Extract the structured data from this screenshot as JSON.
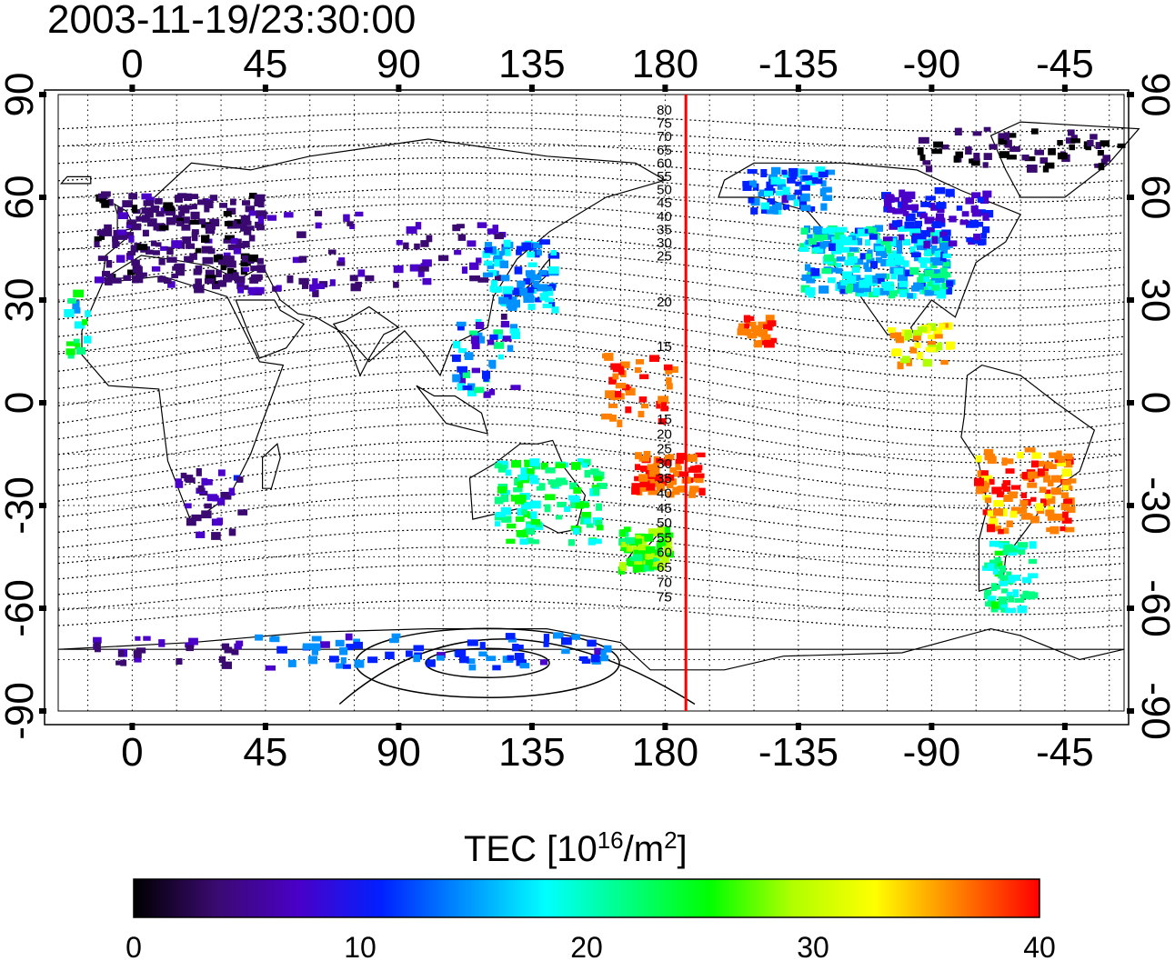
{
  "title": "2003-11-19/23:30:00",
  "map": {
    "lon_range": [
      -25,
      335
    ],
    "lat_range": [
      -90,
      90
    ],
    "top_lon_ticks": [
      "0",
      "45",
      "90",
      "135",
      "180",
      "-135",
      "-90",
      "-45"
    ],
    "bottom_lon_ticks": [
      "0",
      "45",
      "90",
      "135",
      "180",
      "-135",
      "-90",
      "-45"
    ],
    "lon_tick_values": [
      0,
      45,
      90,
      135,
      180,
      225,
      270,
      315
    ],
    "left_lat_ticks": [
      "90",
      "60",
      "30",
      "0",
      "-30",
      "-60",
      "-90"
    ],
    "right_lat_ticks": [
      "90",
      "60",
      "30",
      "0",
      "-30",
      "-60",
      "-90"
    ],
    "lat_tick_values": [
      90,
      60,
      30,
      0,
      -30,
      -60,
      -90
    ],
    "grid": "dotted",
    "meridian_line": {
      "lon": 187,
      "color": "#ff0000"
    },
    "magnetic_lat_labels_north": [
      "80",
      "75",
      "70",
      "65",
      "60",
      "55",
      "50",
      "45",
      "40",
      "35",
      "30",
      "25",
      "20",
      "15"
    ],
    "magnetic_lat_labels_south": [
      "15",
      "20",
      "25",
      "30",
      "35",
      "40",
      "45",
      "50",
      "55",
      "60",
      "65",
      "70",
      "75"
    ]
  },
  "colorbar": {
    "title_main": "TEC  [10",
    "title_sup1": "16",
    "title_mid": "/m",
    "title_sup2": "2",
    "title_end": "]",
    "min": 0,
    "max": 40,
    "tick_labels": [
      "0",
      "10",
      "20",
      "30",
      "40"
    ],
    "tick_values": [
      0,
      10,
      20,
      30,
      40
    ],
    "colormap": [
      "#000000",
      "#3a0a70",
      "#4a00c8",
      "#0020ff",
      "#0090ff",
      "#00ffff",
      "#00ff80",
      "#00ff00",
      "#b0ff00",
      "#ffff00",
      "#ff8000",
      "#ff0000"
    ]
  }
}
